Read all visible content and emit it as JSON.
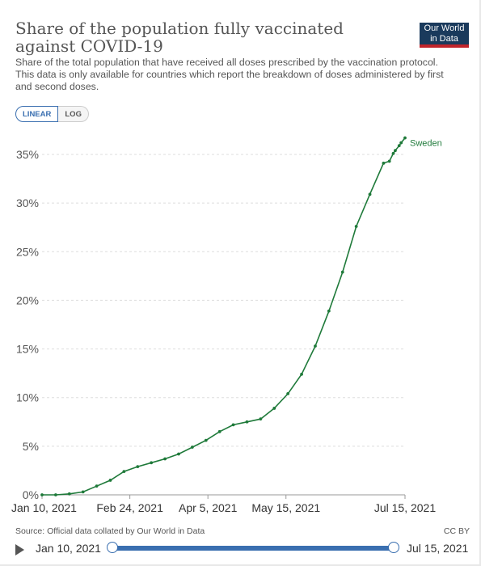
{
  "header": {
    "title": "Share of the population fully vaccinated against COVID-19",
    "subtitle": "Share of the total population that have received all doses prescribed by the vaccination protocol. This data is only available for countries which report the breakdown of doses administered by first and second doses.",
    "logo_line1": "Our World",
    "logo_line2": "in Data"
  },
  "controls": {
    "linear_label": "LINEAR",
    "log_label": "LOG",
    "active": "LINEAR"
  },
  "footer": {
    "source": "Source: Official data collated by Our World in Data",
    "license": "CC BY"
  },
  "timeline": {
    "start_label": "Jan 10, 2021",
    "end_label": "Jul 15, 2021"
  },
  "colors": {
    "series": "#1f7a3a",
    "accent": "#3a6fb0",
    "grid": "#dddddd"
  },
  "chart_data": {
    "type": "line",
    "title": "Share of the population fully vaccinated against COVID-19",
    "xlabel": "",
    "ylabel": "",
    "x_ticks": [
      "Jan 10, 2021",
      "Feb 24, 2021",
      "Apr 5, 2021",
      "May 15, 2021",
      "Jul 15, 2021"
    ],
    "y_ticks": [
      "0%",
      "5%",
      "10%",
      "15%",
      "20%",
      "25%",
      "30%",
      "35%"
    ],
    "ylim": [
      0,
      37
    ],
    "xlim": [
      "2021-01-10",
      "2021-07-15"
    ],
    "grid": true,
    "series": [
      {
        "name": "Sweden",
        "points": [
          [
            "2021-01-10",
            0.0
          ],
          [
            "2021-01-17",
            0.0
          ],
          [
            "2021-01-24",
            0.1
          ],
          [
            "2021-01-31",
            0.3
          ],
          [
            "2021-02-07",
            0.9
          ],
          [
            "2021-02-14",
            1.5
          ],
          [
            "2021-02-21",
            2.4
          ],
          [
            "2021-02-28",
            2.9
          ],
          [
            "2021-03-07",
            3.3
          ],
          [
            "2021-03-14",
            3.7
          ],
          [
            "2021-03-21",
            4.2
          ],
          [
            "2021-03-28",
            4.9
          ],
          [
            "2021-04-04",
            5.6
          ],
          [
            "2021-04-11",
            6.5
          ],
          [
            "2021-04-18",
            7.2
          ],
          [
            "2021-04-25",
            7.5
          ],
          [
            "2021-05-02",
            7.8
          ],
          [
            "2021-05-09",
            8.9
          ],
          [
            "2021-05-16",
            10.4
          ],
          [
            "2021-05-23",
            12.4
          ],
          [
            "2021-05-30",
            15.3
          ],
          [
            "2021-06-06",
            18.9
          ],
          [
            "2021-06-13",
            22.9
          ],
          [
            "2021-06-20",
            27.6
          ],
          [
            "2021-06-27",
            30.9
          ],
          [
            "2021-07-04",
            34.1
          ],
          [
            "2021-07-07",
            34.3
          ],
          [
            "2021-07-09",
            35.1
          ],
          [
            "2021-07-10",
            35.4
          ],
          [
            "2021-07-12",
            35.9
          ],
          [
            "2021-07-13",
            36.2
          ],
          [
            "2021-07-15",
            36.7
          ]
        ]
      }
    ]
  }
}
